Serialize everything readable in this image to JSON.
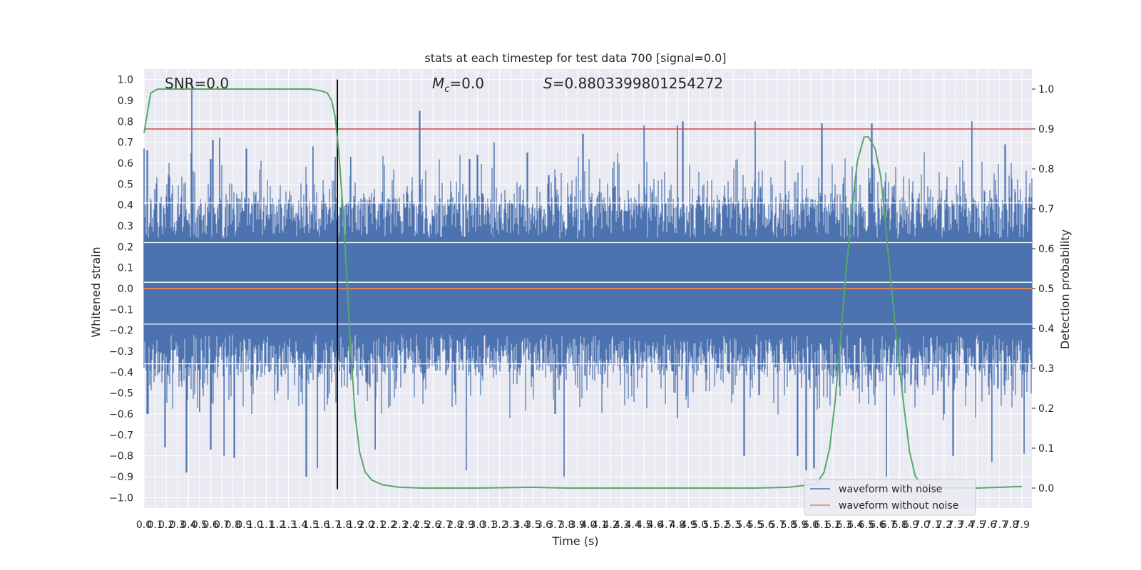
{
  "chart_data": {
    "type": "line",
    "title": "stats at each timestep for test data 700 [signal=0.0]",
    "xlabel": "Time (s)",
    "ylabel": "Whitened strain",
    "y2label": "Detection probability",
    "annotations": {
      "snr": "SNR=0.0",
      "mc_symbol": "M",
      "mc_sub": "c",
      "mc_value": "=0.0",
      "s_symbol": "S",
      "s_value": "=0.8803399801254272"
    },
    "xlim": [
      0.0,
      7.99
    ],
    "ylim": [
      -1.05,
      1.05
    ],
    "y2lim": [
      -0.05,
      1.05
    ],
    "xticks": [
      0.0,
      0.1,
      0.2,
      0.3,
      0.4,
      0.5,
      0.6,
      0.7,
      0.8,
      0.9,
      1.0,
      1.1,
      1.2,
      1.3,
      1.4,
      1.5,
      1.6,
      1.7,
      1.8,
      1.9,
      2.0,
      2.1,
      2.2,
      2.3,
      2.4,
      2.5,
      2.6,
      2.7,
      2.8,
      2.9,
      3.0,
      3.1,
      3.2,
      3.3,
      3.4,
      3.5,
      3.6,
      3.7,
      3.8,
      3.9,
      4.0,
      4.1,
      4.2,
      4.3,
      4.4,
      4.5,
      4.6,
      4.7,
      4.8,
      4.9,
      5.0,
      5.1,
      5.2,
      5.3,
      5.4,
      5.5,
      5.6,
      5.7,
      5.8,
      5.9,
      6.0,
      6.1,
      6.2,
      6.3,
      6.4,
      6.5,
      6.6,
      6.7,
      6.8,
      6.9,
      7.0,
      7.1,
      7.2,
      7.3,
      7.4,
      7.5,
      7.6,
      7.7,
      7.8,
      7.9
    ],
    "yticks": [
      -1.0,
      -0.9,
      -0.8,
      -0.7,
      -0.6,
      -0.5,
      -0.4,
      -0.3,
      -0.2,
      -0.1,
      0.0,
      0.1,
      0.2,
      0.3,
      0.4,
      0.5,
      0.6,
      0.7,
      0.8,
      0.9,
      1.0
    ],
    "y2ticks": [
      0.0,
      0.1,
      0.2,
      0.3,
      0.4,
      0.5,
      0.6,
      0.7,
      0.8,
      0.9,
      1.0
    ],
    "grid": true,
    "legend_position": "lower-right",
    "series": [
      {
        "name": "waveform with noise",
        "axis": "left",
        "color": "#4c72b0",
        "kind": "noise-envelope",
        "upper_peaks": [
          [
            0.0,
            0.67
          ],
          [
            0.03,
            0.66
          ],
          [
            0.43,
            1.0
          ],
          [
            0.6,
            0.62
          ],
          [
            0.62,
            0.71
          ],
          [
            0.68,
            0.72
          ],
          [
            0.92,
            0.67
          ],
          [
            1.52,
            0.68
          ],
          [
            1.72,
            0.63
          ],
          [
            1.86,
            0.63
          ],
          [
            2.48,
            0.85
          ],
          [
            2.93,
            0.62
          ],
          [
            3.0,
            0.64
          ],
          [
            3.15,
            0.7
          ],
          [
            3.45,
            0.65
          ],
          [
            3.95,
            0.74
          ],
          [
            4.5,
            0.78
          ],
          [
            4.8,
            0.78
          ],
          [
            4.85,
            0.8
          ],
          [
            5.5,
            0.8
          ],
          [
            6.1,
            0.79
          ],
          [
            6.55,
            0.79
          ],
          [
            7.45,
            0.8
          ],
          [
            7.75,
            0.69
          ]
        ],
        "lower_peaks": [
          [
            0.03,
            -0.6
          ],
          [
            0.19,
            -0.76
          ],
          [
            0.38,
            -0.88
          ],
          [
            0.5,
            -0.59
          ],
          [
            0.6,
            -0.77
          ],
          [
            0.72,
            -0.8
          ],
          [
            0.81,
            -0.81
          ],
          [
            1.46,
            -0.9
          ],
          [
            1.56,
            -0.86
          ],
          [
            1.74,
            -0.84
          ],
          [
            2.08,
            -0.77
          ],
          [
            2.9,
            -0.87
          ],
          [
            3.7,
            -0.6
          ],
          [
            3.78,
            -0.9
          ],
          [
            4.8,
            -0.62
          ],
          [
            5.4,
            -0.8
          ],
          [
            5.88,
            -0.8
          ],
          [
            5.96,
            -0.87
          ],
          [
            6.03,
            -0.86
          ],
          [
            6.68,
            -0.9
          ],
          [
            7.2,
            -0.6
          ],
          [
            7.28,
            -0.8
          ],
          [
            7.63,
            -0.83
          ],
          [
            7.92,
            -0.79
          ]
        ]
      },
      {
        "name": "waveform without noise",
        "axis": "left",
        "color": "#dd8452",
        "points": [
          [
            0.0,
            0.0
          ],
          [
            7.99,
            0.0
          ]
        ]
      },
      {
        "axis": "right",
        "color": "#55a868",
        "points": [
          [
            0.0,
            0.89
          ],
          [
            0.06,
            0.99
          ],
          [
            0.12,
            1.0
          ],
          [
            0.5,
            1.0
          ],
          [
            1.0,
            1.0
          ],
          [
            1.5,
            1.0
          ],
          [
            1.6,
            0.995
          ],
          [
            1.65,
            0.99
          ],
          [
            1.69,
            0.97
          ],
          [
            1.72,
            0.93
          ],
          [
            1.75,
            0.85
          ],
          [
            1.79,
            0.7
          ],
          [
            1.82,
            0.55
          ],
          [
            1.86,
            0.35
          ],
          [
            1.9,
            0.18
          ],
          [
            1.94,
            0.09
          ],
          [
            1.99,
            0.04
          ],
          [
            2.05,
            0.02
          ],
          [
            2.15,
            0.008
          ],
          [
            2.3,
            0.002
          ],
          [
            2.5,
            0.0
          ],
          [
            3.0,
            0.0
          ],
          [
            3.5,
            0.002
          ],
          [
            3.8,
            0.0
          ],
          [
            4.5,
            0.0
          ],
          [
            5.0,
            0.0
          ],
          [
            5.5,
            0.0
          ],
          [
            5.8,
            0.002
          ],
          [
            6.05,
            0.01
          ],
          [
            6.12,
            0.04
          ],
          [
            6.17,
            0.1
          ],
          [
            6.22,
            0.22
          ],
          [
            6.27,
            0.38
          ],
          [
            6.32,
            0.55
          ],
          [
            6.37,
            0.7
          ],
          [
            6.42,
            0.82
          ],
          [
            6.48,
            0.88
          ],
          [
            6.52,
            0.88
          ],
          [
            6.58,
            0.85
          ],
          [
            6.63,
            0.78
          ],
          [
            6.67,
            0.67
          ],
          [
            6.72,
            0.52
          ],
          [
            6.78,
            0.35
          ],
          [
            6.84,
            0.2
          ],
          [
            6.89,
            0.09
          ],
          [
            6.94,
            0.03
          ],
          [
            7.0,
            0.008
          ],
          [
            7.1,
            0.001
          ],
          [
            7.5,
            0.0
          ],
          [
            7.9,
            0.004
          ]
        ]
      }
    ],
    "threshold": {
      "axis": "right",
      "value": 0.9,
      "color": "#c44e52"
    },
    "marker_line": {
      "x": 1.74,
      "y_from": -0.96,
      "y_to": 1.0,
      "color": "#000000"
    }
  }
}
